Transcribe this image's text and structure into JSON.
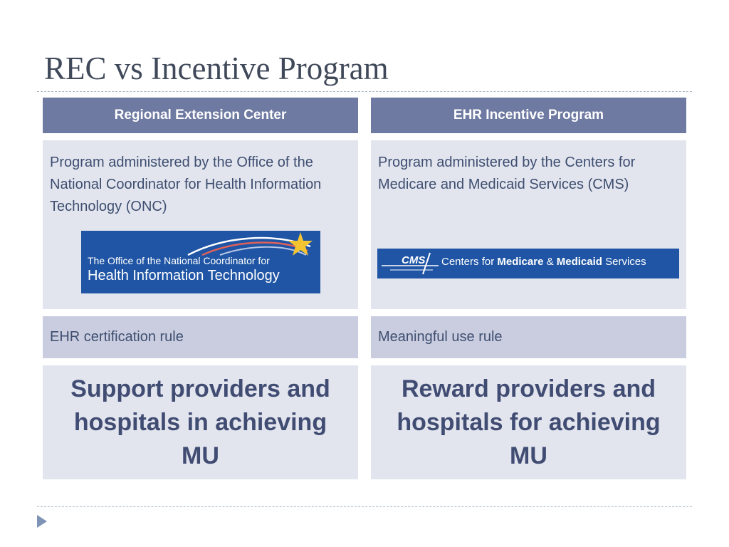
{
  "slide": {
    "title": "REC vs Incentive Program"
  },
  "left_column": {
    "header": "Regional Extension Center",
    "description": "Program administered by the Office of the National Coordinator for Health Information Technology (ONC)",
    "logo": {
      "line1": "The Office of the National Coordinator for",
      "line2": "Health Information Technology"
    },
    "rule": "EHR certification rule",
    "goal": "Support providers and hospitals in achieving MU"
  },
  "right_column": {
    "header": "EHR Incentive Program",
    "description": "Program administered by the Centers for Medicare and Medicaid Services (CMS)",
    "logo": {
      "mark": "CMS",
      "prefix": "Centers for ",
      "medicare": "Medicare",
      "amp": " & ",
      "medicaid": "Medicaid",
      "suffix": " Services"
    },
    "rule": "Meaningful use rule",
    "goal": "Reward providers and hospitals for achieving MU"
  },
  "colors": {
    "header_bg": "#6e7aa1",
    "cell_light": "#e2e5ee",
    "cell_medium": "#c9cddf",
    "logo_blue": "#1f55a4",
    "star_gold": "#f5c431"
  },
  "icons": {
    "nav": "triangle-bullet-icon",
    "onc_star": "star-icon"
  }
}
